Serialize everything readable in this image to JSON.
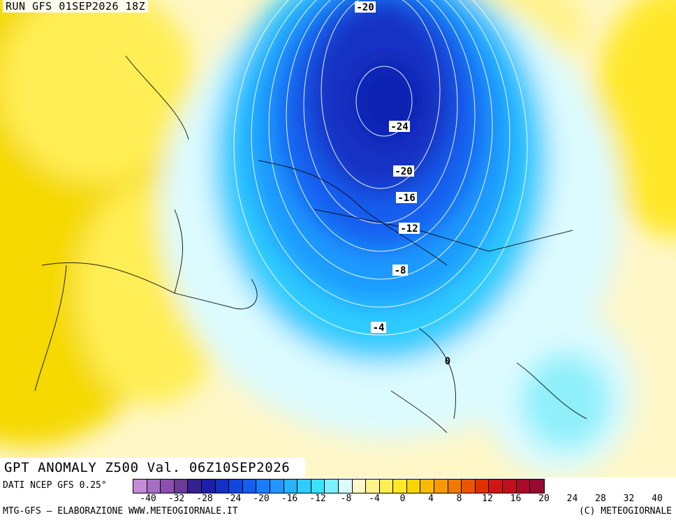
{
  "run_title": "RUN GFS 01SEP2026 18Z",
  "valid_title": "GPT ANOMALY Z500 Val. 06Z10SEP2026",
  "source_text": "DATI NCEP GFS 0.25°",
  "credit_left": "MTG-GFS – ELABORAZIONE WWW.METEOGIORNALE.IT",
  "credit_right": "(C) METEOGIORNALE",
  "contour_labels": [
    "-20",
    "-24",
    "-20",
    "-16",
    "-12",
    "-8",
    "-4",
    "0"
  ],
  "colors": {
    "neg_deep": "#0d2ccf",
    "neg_mid": "#1f80ff",
    "neg_light": "#31d6ff",
    "neutral": "#dcfbff",
    "pos_light": "#fff7c7",
    "pos_mid": "#ffee55",
    "pos_strong": "#f5d900"
  },
  "scale": {
    "colors": [
      "#c58bd6",
      "#a66ec4",
      "#8c4fb0",
      "#6c3b96",
      "#34208f",
      "#1c1faa",
      "#1330c4",
      "#1046db",
      "#135ef0",
      "#1a7bff",
      "#2297ff",
      "#28b2ff",
      "#2fccff",
      "#3ae2ff",
      "#7cf0ff",
      "#dcfbff",
      "#fff7c7",
      "#fff28a",
      "#ffee55",
      "#ffe82a",
      "#fbd500",
      "#f8bb00",
      "#f59a00",
      "#f07a00",
      "#ea5500",
      "#e03000",
      "#d01515",
      "#c0101e",
      "#ab0a28",
      "#960a30"
    ],
    "labels": [
      "-40",
      "-32",
      "-28",
      "-24",
      "-20",
      "-16",
      "-12",
      "-8",
      "-4",
      "0",
      "4",
      "8",
      "12",
      "16",
      "20",
      "24",
      "28",
      "32",
      "40"
    ]
  }
}
